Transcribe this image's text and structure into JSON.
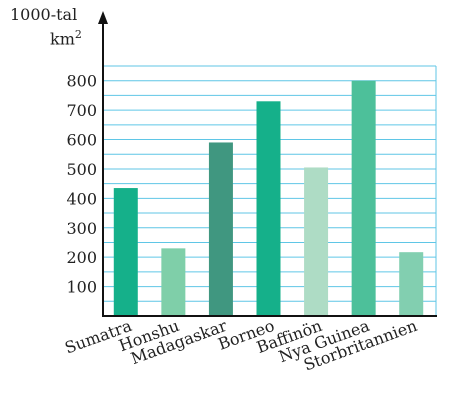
{
  "chart_data": {
    "type": "bar",
    "ylabel_line1": "1000-tal",
    "ylabel_unit": "km",
    "ylabel_exp": "2",
    "categories": [
      "Sumatra",
      "Honshu",
      "Madagaskar",
      "Borneo",
      "Baffinön",
      "Nya Guinea",
      "Storbritannien"
    ],
    "values": [
      435,
      230,
      590,
      730,
      505,
      800,
      217
    ],
    "bar_colors": [
      "#15b08a",
      "#7fcfa9",
      "#409780",
      "#15b08a",
      "#aedcc5",
      "#4dc09a",
      "#82cfb0"
    ],
    "yticks": [
      100,
      200,
      300,
      400,
      500,
      600,
      700,
      800
    ],
    "ylim": [
      0,
      850
    ],
    "grid": true,
    "grid_color": "#5fc6e6"
  }
}
